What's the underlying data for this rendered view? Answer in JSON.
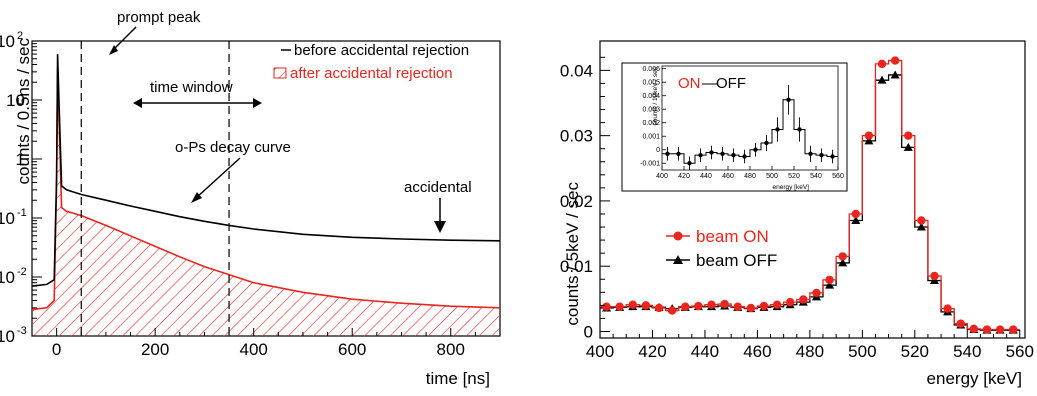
{
  "chart_data": [
    {
      "type": "line",
      "xlabel": "time [ns]",
      "ylabel": "counts / 0.5ns / sec",
      "xlim": [
        -50,
        900
      ],
      "ylim": [
        0.001,
        100
      ],
      "yscale": "log",
      "xticks": [
        0,
        200,
        400,
        600,
        800
      ],
      "yticks": [
        {
          "v": 0.001,
          "base": "10",
          "exp": "-3"
        },
        {
          "v": 0.01,
          "base": "10",
          "exp": "-2"
        },
        {
          "v": 0.1,
          "base": "10",
          "exp": "-1"
        },
        {
          "v": 1,
          "base": "1",
          "exp": ""
        },
        {
          "v": 10,
          "base": "10",
          "exp": ""
        },
        {
          "v": 100,
          "base": "10",
          "exp": "2"
        }
      ],
      "legend_position": "top-right",
      "series": [
        {
          "name": "before accidental rejection",
          "color": "#000000",
          "x": [
            -50,
            -20,
            -5,
            0,
            2,
            5,
            10,
            20,
            50,
            100,
            150,
            200,
            250,
            300,
            350,
            400,
            500,
            600,
            700,
            800,
            900
          ],
          "y": [
            0.007,
            0.0075,
            0.009,
            0.5,
            60,
            8,
            0.35,
            0.3,
            0.25,
            0.2,
            0.16,
            0.13,
            0.105,
            0.088,
            0.075,
            0.065,
            0.053,
            0.047,
            0.044,
            0.042,
            0.041
          ]
        },
        {
          "name": "after accidental rejection",
          "color": "#e8251f",
          "fill": "hatch",
          "x": [
            -50,
            -20,
            -5,
            0,
            2,
            5,
            10,
            20,
            50,
            100,
            150,
            200,
            250,
            300,
            350,
            400,
            500,
            600,
            700,
            800,
            900
          ],
          "y": [
            0.0028,
            0.003,
            0.004,
            0.4,
            35,
            4,
            0.15,
            0.13,
            0.11,
            0.075,
            0.05,
            0.033,
            0.022,
            0.015,
            0.011,
            0.008,
            0.0055,
            0.0042,
            0.0036,
            0.0032,
            0.003
          ]
        }
      ],
      "time_window": [
        50,
        350
      ],
      "annotations": {
        "prompt_peak": "prompt peak",
        "time_window": "time window",
        "decay_curve": "o-Ps decay curve",
        "accidental": "accidental"
      }
    },
    {
      "type": "histogram",
      "xlabel": "energy [keV]",
      "ylabel": "counts / 5keV / sec",
      "xlim": [
        400,
        562
      ],
      "ylim": [
        -0.001,
        0.0445
      ],
      "xticks": [
        400,
        420,
        440,
        460,
        480,
        500,
        520,
        540,
        560
      ],
      "yticks": [
        0,
        0.01,
        0.02,
        0.03,
        0.04
      ],
      "ytick_labels": [
        "0",
        "0.01",
        "0.02",
        "0.03",
        "0.04"
      ],
      "legend_position": "center-left",
      "bins": [
        402.5,
        407.5,
        412.5,
        417.5,
        422.5,
        427.5,
        432.5,
        437.5,
        442.5,
        447.5,
        452.5,
        457.5,
        462.5,
        467.5,
        472.5,
        477.5,
        482.5,
        487.5,
        492.5,
        497.5,
        502.5,
        507.5,
        512.5,
        517.5,
        522.5,
        527.5,
        532.5,
        537.5,
        542.5,
        547.5,
        552.5,
        557.5
      ],
      "series": [
        {
          "name": "beam ON",
          "color": "#e8251f",
          "marker": "circle",
          "values": [
            0.0038,
            0.0038,
            0.0041,
            0.004,
            0.0036,
            0.0032,
            0.0038,
            0.0039,
            0.0041,
            0.0042,
            0.0038,
            0.0036,
            0.0039,
            0.0041,
            0.0045,
            0.0049,
            0.0059,
            0.0079,
            0.0115,
            0.018,
            0.03,
            0.041,
            0.0415,
            0.03,
            0.017,
            0.0085,
            0.0035,
            0.0012,
            0.0004,
            0.0003,
            0.0003,
            0.0003
          ]
        },
        {
          "name": "beam OFF",
          "color": "#000000",
          "marker": "triangle",
          "values": [
            0.0036,
            0.0037,
            0.0038,
            0.0038,
            0.0037,
            0.0035,
            0.0037,
            0.0038,
            0.0038,
            0.0039,
            0.0037,
            0.0035,
            0.0037,
            0.0038,
            0.0041,
            0.0045,
            0.0053,
            0.0071,
            0.0105,
            0.017,
            0.0292,
            0.0385,
            0.0393,
            0.0282,
            0.016,
            0.0078,
            0.003,
            0.001,
            0.0003,
            0.0002,
            0.0002,
            0.0002
          ]
        }
      ],
      "inset": {
        "xlabel": "energy [keV]",
        "ylabel": "counts / 10keV / sec",
        "xlim": [
          400,
          560
        ],
        "ylim": [
          -0.0015,
          0.0062
        ],
        "xticks": [
          400,
          420,
          440,
          460,
          480,
          500,
          520,
          540,
          560
        ],
        "yticks": [
          -0.001,
          0,
          0.001,
          0.002,
          0.003,
          0.004,
          0.005,
          0.006
        ],
        "ytick_labels": [
          "-0.001",
          "0",
          "0.001",
          "0.002",
          "0.003",
          "0.004",
          "0.005",
          "0.006"
        ],
        "legend_on": "ON",
        "legend_sep": "—",
        "legend_off": "OFF",
        "bins": [
          405,
          415,
          425,
          435,
          445,
          455,
          465,
          475,
          485,
          495,
          505,
          515,
          525,
          535,
          545,
          555
        ],
        "values": [
          -0.0003,
          -0.0003,
          -0.001,
          -0.0004,
          -0.0002,
          -0.0003,
          -0.0004,
          -0.0005,
          0.0,
          0.0005,
          0.0015,
          0.0037,
          0.0015,
          -0.0003,
          -0.0004,
          -0.0005
        ],
        "errors": [
          0.0005,
          0.0005,
          0.0005,
          0.0005,
          0.0005,
          0.0005,
          0.0005,
          0.0005,
          0.0005,
          0.0006,
          0.0009,
          0.0011,
          0.0009,
          0.0006,
          0.0005,
          0.0005
        ]
      }
    }
  ]
}
